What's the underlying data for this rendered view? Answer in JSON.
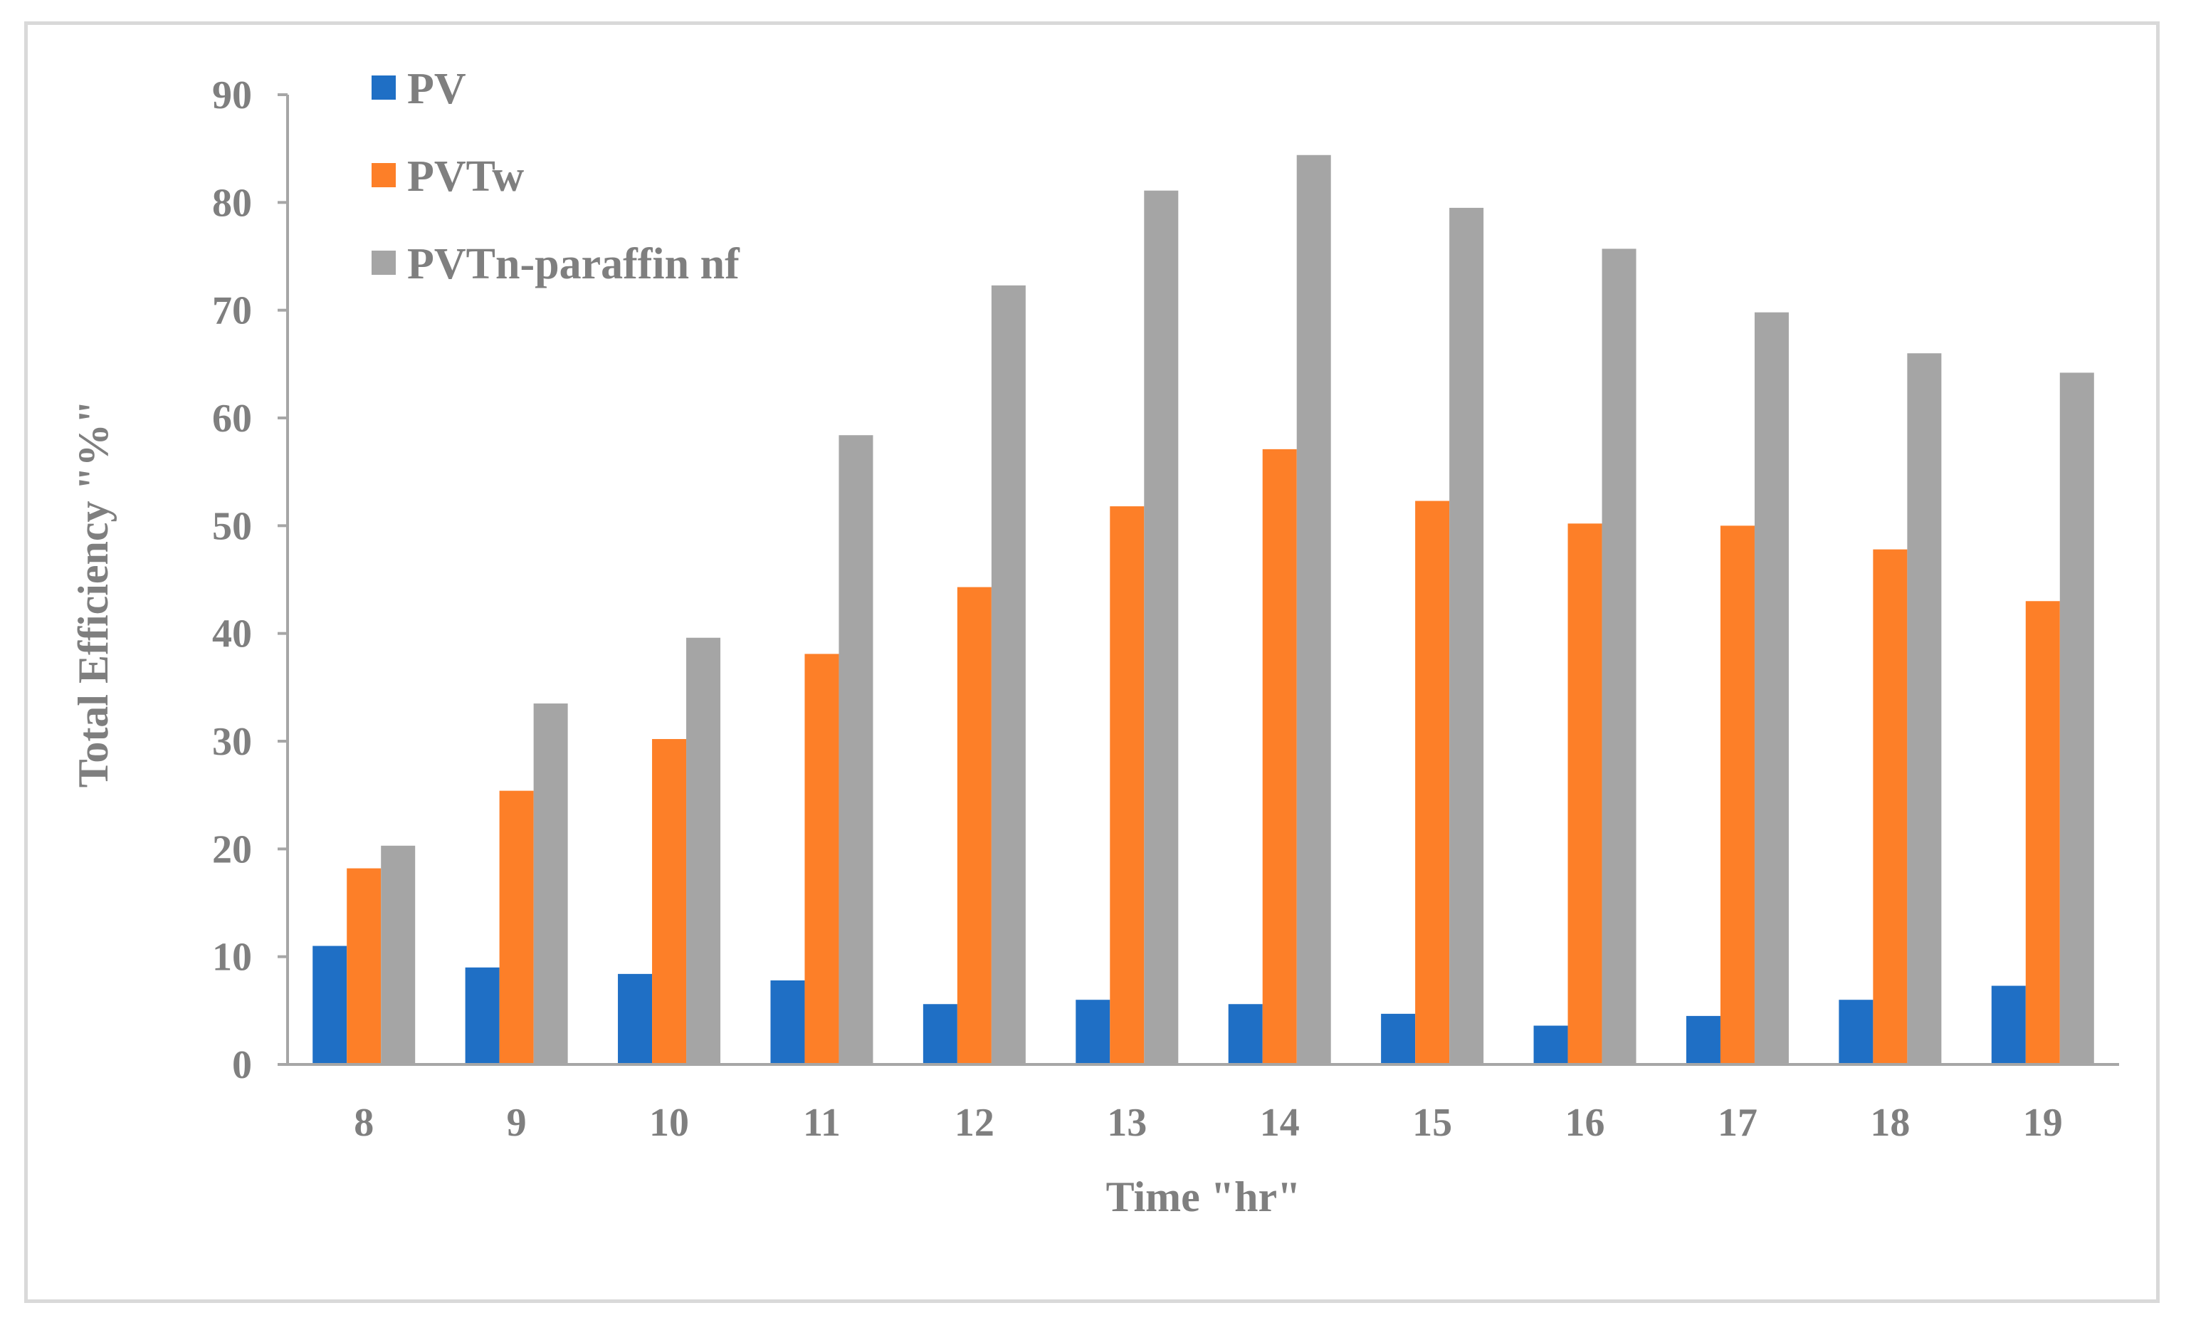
{
  "chart_data": {
    "type": "bar",
    "title": "",
    "xlabel": "Time \"hr\"",
    "ylabel": "Total Efficiency \"%\"",
    "categories": [
      "8",
      "9",
      "10",
      "11",
      "12",
      "13",
      "14",
      "15",
      "16",
      "17",
      "18",
      "19"
    ],
    "ylim": [
      0,
      90
    ],
    "yticks": [
      0,
      10,
      20,
      30,
      40,
      50,
      60,
      70,
      80,
      90
    ],
    "grid": false,
    "legend_position": "top-left",
    "series": [
      {
        "name": "PV",
        "color": "#1f6fc5",
        "values": [
          11.0,
          9.0,
          8.4,
          7.8,
          5.6,
          6.0,
          5.6,
          4.7,
          3.6,
          4.5,
          6.0,
          7.3
        ]
      },
      {
        "name": "PVTw",
        "color": "#fd7f28",
        "values": [
          18.2,
          25.4,
          30.2,
          38.1,
          44.3,
          51.8,
          57.1,
          52.3,
          50.2,
          50.0,
          47.8,
          43.0
        ]
      },
      {
        "name": "PVTn-paraffin nf",
        "color": "#a5a5a5",
        "values": [
          20.3,
          33.5,
          39.6,
          58.4,
          72.3,
          81.1,
          84.4,
          79.5,
          75.7,
          69.8,
          66.0,
          64.2
        ]
      }
    ]
  }
}
